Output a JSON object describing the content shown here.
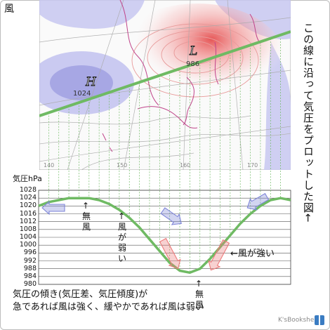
{
  "title": "風",
  "vertical_caption": "この線に沿って気圧をプロットした図",
  "vertical_caption_arrow": "←",
  "map": {
    "high_label": "H",
    "high_value": "1024",
    "low_label": "L",
    "low_value": "986",
    "longitude_labels": [
      "140",
      "150",
      "160",
      "170"
    ]
  },
  "profile": {
    "y_axis_label": "気圧hPa",
    "labels": {
      "no_wind_left": [
        "↑",
        "無",
        "風"
      ],
      "weak_wind": [
        "↑",
        "風",
        "が",
        "弱",
        "い"
      ],
      "strong_wind": "←風が強い",
      "no_wind_bottom": [
        "↑",
        "無",
        "風"
      ]
    }
  },
  "note": {
    "line1": "気圧の傾き(気圧差、気圧傾度)が",
    "line2": "急であれば風は強く、緩やかであれば風は弱い"
  },
  "credit": "K'sBookshelf",
  "colors": {
    "profile_line": "#6fba63",
    "high_fill": "#9a9ae0",
    "low_fill": "#e86c6c",
    "weak_arrow": "#7f86d8",
    "strong_arrow": "#ec7a7a"
  },
  "chart_data": {
    "type": "line",
    "ylabel": "気圧hPa",
    "ylim": [
      980,
      1028
    ],
    "y_ticks": [
      1028,
      1024,
      1020,
      1016,
      1012,
      1008,
      1004,
      1000,
      996,
      992,
      988,
      984,
      980
    ],
    "series": [
      {
        "values": [
          1020,
          1022,
          1023,
          1024,
          1024,
          1024,
          1023,
          1021,
          1018,
          1014,
          1009,
          1003,
          997,
          991,
          987,
          986,
          988,
          993,
          999,
          1005,
          1011,
          1016,
          1020,
          1023,
          1024,
          1023
        ]
      }
    ]
  }
}
